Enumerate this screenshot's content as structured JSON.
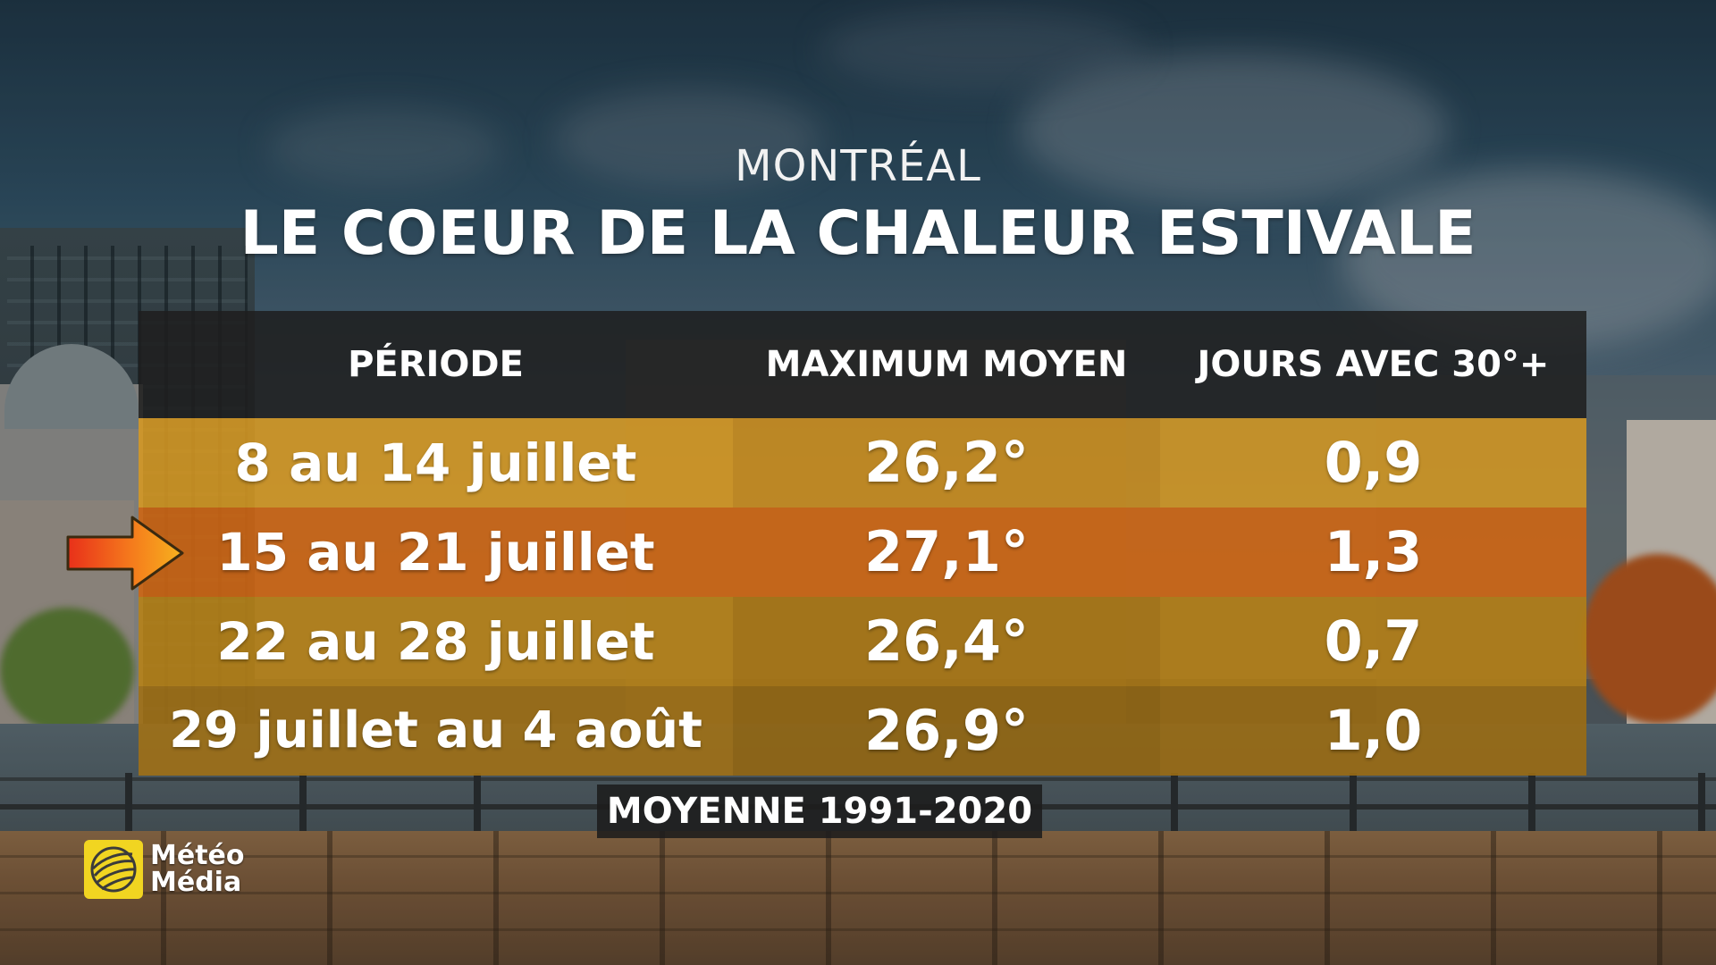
{
  "header": {
    "city": "MONTRÉAL",
    "title": "LE COEUR DE LA CHALEUR ESTIVALE"
  },
  "table": {
    "columns": [
      "PÉRIODE",
      "MAXIMUM MOYEN",
      "JOURS AVEC 30°+"
    ],
    "rows": [
      {
        "period": "8 au 14 juillet",
        "max": "26,2°",
        "days": "0,9"
      },
      {
        "period": "15 au 21 juillet",
        "max": "27,1°",
        "days": "1,3",
        "highlighted": true
      },
      {
        "period": "22 au 28 juillet",
        "max": "26,4°",
        "days": "0,7"
      },
      {
        "period": "29 juillet au 4 août",
        "max": "26,9°",
        "days": "1,0"
      }
    ],
    "footnote": "MOYENNE 1991-2020"
  },
  "indicator": {
    "icon": "arrow-right-icon",
    "row": 2
  },
  "logo": {
    "line1": "Météo",
    "line2": "Média",
    "color": "#f1d521"
  },
  "colors": {
    "header_bg": "#1e1e1e",
    "row_yellow": "#d69822",
    "row_highlight": "#cd6614",
    "row_dark_yellow": "#a07016"
  }
}
